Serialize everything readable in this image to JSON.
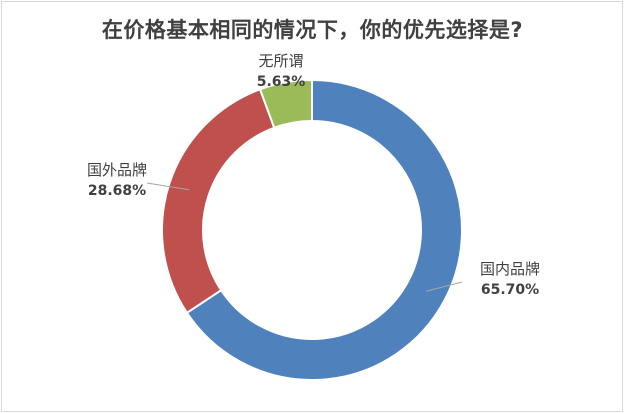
{
  "chart_data": {
    "type": "pie",
    "variant": "doughnut",
    "title": "在价格基本相同的情况下，你的优先选择是?",
    "slices": [
      {
        "name": "国内品牌",
        "value": 65.7,
        "value_label": "65.70%",
        "color": "#4f81bd"
      },
      {
        "name": "国外品牌",
        "value": 28.68,
        "value_label": "28.68%",
        "color": "#c0504d"
      },
      {
        "name": "无所谓",
        "value": 5.63,
        "value_label": "5.63%",
        "color": "#9bbb59"
      }
    ],
    "start_angle_deg": 0,
    "direction": "clockwise",
    "legend": "none",
    "data_labels": "outside with leader lines"
  }
}
